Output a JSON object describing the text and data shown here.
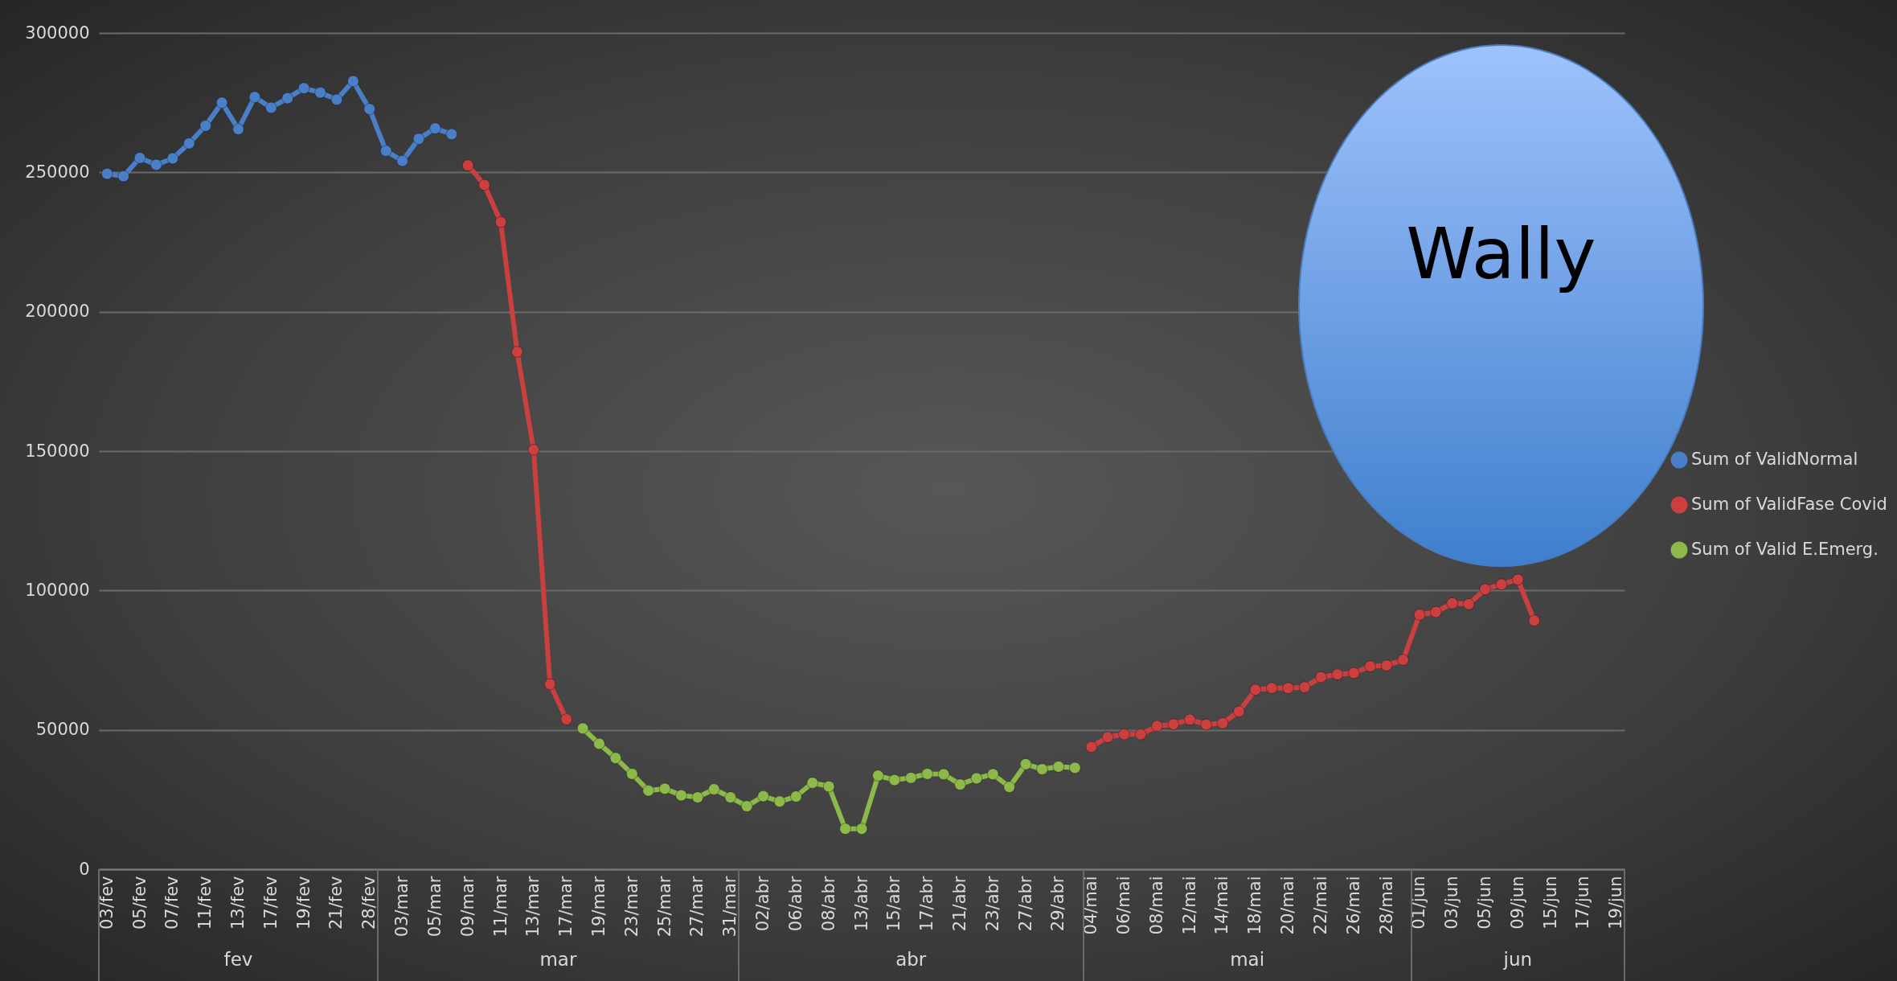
{
  "chart_data": {
    "type": "line",
    "categories": [
      "03/fev",
      null,
      "05/fev",
      null,
      "07/fev",
      null,
      "11/fev",
      null,
      "13/fev",
      null,
      "17/fev",
      null,
      "19/fev",
      null,
      "21/fev",
      null,
      "28/fev",
      null,
      "03/mar",
      null,
      "05/mar",
      null,
      "09/mar",
      null,
      "11/mar",
      null,
      "13/mar",
      null,
      "17/mar",
      null,
      "19/mar",
      null,
      "23/mar",
      null,
      "25/mar",
      null,
      "27/mar",
      null,
      "31/mar",
      null,
      "02/abr",
      null,
      "06/abr",
      null,
      "08/abr",
      null,
      "13/abr",
      null,
      "15/abr",
      null,
      "17/abr",
      null,
      "21/abr",
      null,
      "23/abr",
      null,
      "27/abr",
      null,
      "29/abr",
      null,
      "04/mai",
      null,
      "06/mai",
      null,
      "08/mai",
      null,
      "12/mai",
      null,
      "14/mai",
      null,
      "18/mai",
      null,
      "20/mai",
      null,
      "22/mai",
      null,
      "26/mai",
      null,
      "28/mai",
      null,
      "01/jun",
      null,
      "03/jun",
      null,
      "05/jun",
      null,
      "09/jun",
      null,
      "15/jun",
      null,
      "17/jun",
      null,
      "19/jun"
    ],
    "series": [
      {
        "name": "Sum of ValidNormal",
        "color": "#4a7fc8",
        "values": [
          249500,
          248600,
          255200,
          252700,
          255000,
          260400,
          266700,
          275000,
          265500,
          277000,
          273200,
          276600,
          280200,
          278600,
          276100,
          282700,
          272700,
          257700,
          254100,
          262000,
          265800,
          263700,
          null,
          null,
          null,
          null,
          null,
          null,
          null,
          null,
          null,
          null,
          null,
          null,
          null,
          null,
          null,
          null,
          null,
          null,
          null,
          null,
          null,
          null,
          null,
          null,
          null,
          null,
          null,
          null,
          null,
          null,
          null,
          null,
          null,
          null,
          null,
          null,
          null,
          null,
          null,
          null,
          null,
          null,
          null,
          null,
          null,
          null,
          null,
          null,
          null,
          null,
          null,
          null,
          null,
          null,
          null,
          null,
          null,
          null,
          null,
          null,
          null,
          null,
          null,
          null,
          null,
          null,
          null,
          null,
          null,
          null,
          null
        ]
      },
      {
        "name": "Sum of ValidFase Covid",
        "color": "#c9403f",
        "values": [
          null,
          null,
          null,
          null,
          null,
          null,
          null,
          null,
          null,
          null,
          null,
          null,
          null,
          null,
          null,
          null,
          null,
          null,
          null,
          null,
          null,
          null,
          252500,
          245500,
          232200,
          185600,
          150500,
          66400,
          53800,
          null,
          null,
          null,
          null,
          null,
          null,
          null,
          null,
          null,
          null,
          null,
          null,
          null,
          null,
          null,
          null,
          null,
          null,
          null,
          null,
          null,
          null,
          null,
          null,
          null,
          null,
          null,
          null,
          null,
          null,
          null,
          43900,
          47400,
          48400,
          48400,
          51400,
          52000,
          53700,
          51900,
          52400,
          56600,
          64400,
          65000,
          65000,
          65300,
          68900,
          69900,
          70400,
          72800,
          73100,
          75100,
          91300,
          92300,
          95400,
          95100,
          100400,
          102200,
          103900,
          89200,
          null,
          null,
          null,
          null,
          null
        ]
      },
      {
        "name": "Sum of Valid E.Emerg.",
        "color": "#8db84a",
        "values": [
          null,
          null,
          null,
          null,
          null,
          null,
          null,
          null,
          null,
          null,
          null,
          null,
          null,
          null,
          null,
          null,
          null,
          null,
          null,
          null,
          null,
          null,
          null,
          null,
          null,
          null,
          null,
          null,
          null,
          50500,
          45000,
          39900,
          34200,
          28200,
          28900,
          26500,
          25800,
          28700,
          25800,
          22600,
          26200,
          24300,
          26100,
          31000,
          29700,
          14500,
          14500,
          33600,
          32000,
          32800,
          34200,
          34100,
          30400,
          32600,
          34100,
          29500,
          37700,
          35900,
          36800,
          36400,
          null,
          null,
          null,
          null,
          null,
          null,
          null,
          null,
          null,
          null,
          null,
          null,
          null,
          null,
          null,
          null,
          null,
          null,
          null,
          null,
          null,
          null,
          null,
          null,
          null,
          null,
          null,
          null,
          null,
          null,
          null,
          null,
          null
        ]
      }
    ],
    "ylim": [
      0,
      300000
    ],
    "yticks": [
      0,
      50000,
      100000,
      150000,
      200000,
      250000,
      300000
    ],
    "grid": "y",
    "legend": "right",
    "marker": "circle",
    "line_style": "solid",
    "annotations": [
      "Wally",
      "fev",
      "mar",
      "abr",
      "mai",
      "jun"
    ]
  }
}
